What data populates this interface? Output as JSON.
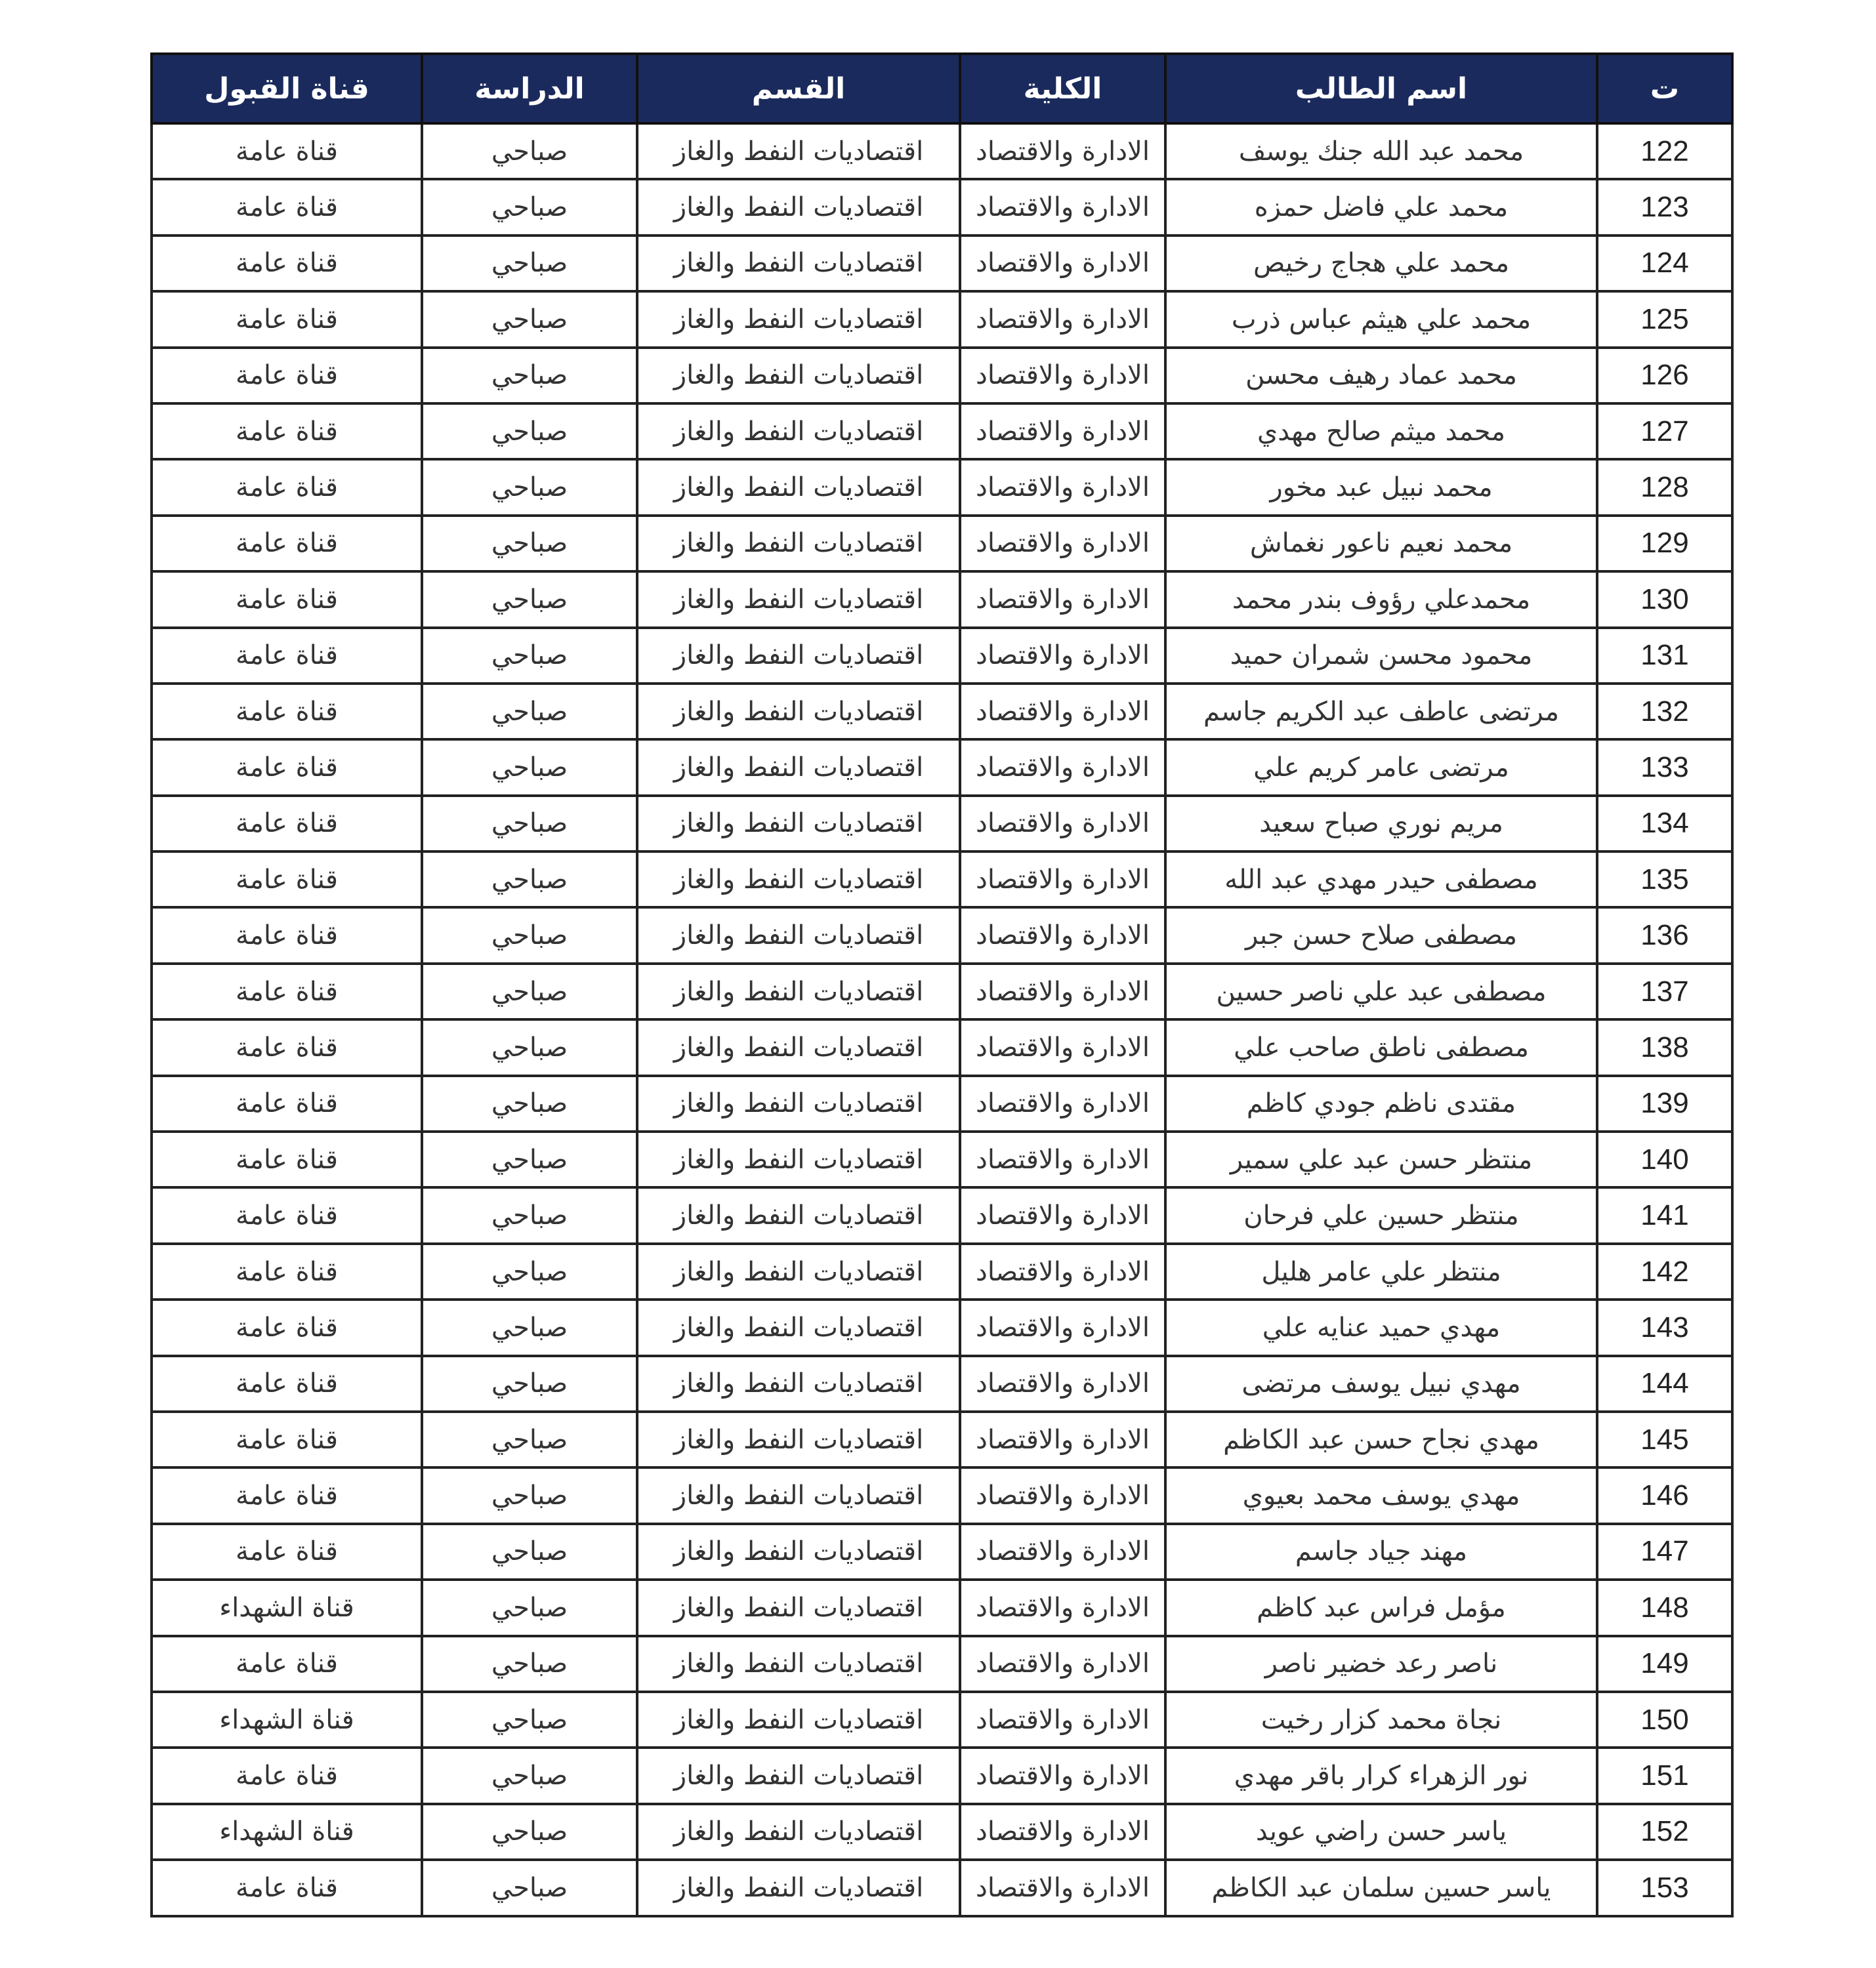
{
  "table": {
    "headers": [
      "ت",
      "اسم الطالب",
      "الكلية",
      "القسم",
      "الدراسة",
      "قناة القبول"
    ],
    "header_color": "#1b2a5c",
    "rows": [
      [
        "122",
        "محمد عبد الله جنك يوسف",
        "الادارة والاقتصاد",
        "اقتصاديات النفط والغاز",
        "صباحي",
        "قناة عامة"
      ],
      [
        "123",
        "محمد علي فاضل حمزه",
        "الادارة والاقتصاد",
        "اقتصاديات النفط والغاز",
        "صباحي",
        "قناة عامة"
      ],
      [
        "124",
        "محمد علي هجاج رخيص",
        "الادارة والاقتصاد",
        "اقتصاديات النفط والغاز",
        "صباحي",
        "قناة عامة"
      ],
      [
        "125",
        "محمد علي هيثم عباس ذرب",
        "الادارة والاقتصاد",
        "اقتصاديات النفط والغاز",
        "صباحي",
        "قناة عامة"
      ],
      [
        "126",
        "محمد عماد رهيف محسن",
        "الادارة والاقتصاد",
        "اقتصاديات النفط والغاز",
        "صباحي",
        "قناة عامة"
      ],
      [
        "127",
        "محمد ميثم صالح مهدي",
        "الادارة والاقتصاد",
        "اقتصاديات النفط والغاز",
        "صباحي",
        "قناة عامة"
      ],
      [
        "128",
        "محمد نبيل عبد مخور",
        "الادارة والاقتصاد",
        "اقتصاديات النفط والغاز",
        "صباحي",
        "قناة عامة"
      ],
      [
        "129",
        "محمد نعيم ناعور نغماش",
        "الادارة والاقتصاد",
        "اقتصاديات النفط والغاز",
        "صباحي",
        "قناة عامة"
      ],
      [
        "130",
        "محمدعلي رؤوف بندر محمد",
        "الادارة والاقتصاد",
        "اقتصاديات النفط والغاز",
        "صباحي",
        "قناة عامة"
      ],
      [
        "131",
        "محمود محسن شمران حميد",
        "الادارة والاقتصاد",
        "اقتصاديات النفط والغاز",
        "صباحي",
        "قناة عامة"
      ],
      [
        "132",
        "مرتضى عاطف عبد الكريم جاسم",
        "الادارة والاقتصاد",
        "اقتصاديات النفط والغاز",
        "صباحي",
        "قناة عامة"
      ],
      [
        "133",
        "مرتضى عامر كريم علي",
        "الادارة والاقتصاد",
        "اقتصاديات النفط والغاز",
        "صباحي",
        "قناة عامة"
      ],
      [
        "134",
        "مريم نوري صباح سعيد",
        "الادارة والاقتصاد",
        "اقتصاديات النفط والغاز",
        "صباحي",
        "قناة عامة"
      ],
      [
        "135",
        "مصطفى حيدر مهدي عبد الله",
        "الادارة والاقتصاد",
        "اقتصاديات النفط والغاز",
        "صباحي",
        "قناة عامة"
      ],
      [
        "136",
        "مصطفى صلاح حسن جبر",
        "الادارة والاقتصاد",
        "اقتصاديات النفط والغاز",
        "صباحي",
        "قناة عامة"
      ],
      [
        "137",
        "مصطفى عبد علي ناصر حسين",
        "الادارة والاقتصاد",
        "اقتصاديات النفط والغاز",
        "صباحي",
        "قناة عامة"
      ],
      [
        "138",
        "مصطفى ناطق صاحب علي",
        "الادارة والاقتصاد",
        "اقتصاديات النفط والغاز",
        "صباحي",
        "قناة عامة"
      ],
      [
        "139",
        "مقتدى ناظم جودي كاظم",
        "الادارة والاقتصاد",
        "اقتصاديات النفط والغاز",
        "صباحي",
        "قناة عامة"
      ],
      [
        "140",
        "منتظر حسن عبد علي سمير",
        "الادارة والاقتصاد",
        "اقتصاديات النفط والغاز",
        "صباحي",
        "قناة عامة"
      ],
      [
        "141",
        "منتظر حسين علي فرحان",
        "الادارة والاقتصاد",
        "اقتصاديات النفط والغاز",
        "صباحي",
        "قناة عامة"
      ],
      [
        "142",
        "منتظر علي عامر هليل",
        "الادارة والاقتصاد",
        "اقتصاديات النفط والغاز",
        "صباحي",
        "قناة عامة"
      ],
      [
        "143",
        "مهدي حميد عنايه علي",
        "الادارة والاقتصاد",
        "اقتصاديات النفط والغاز",
        "صباحي",
        "قناة عامة"
      ],
      [
        "144",
        "مهدي نبيل يوسف مرتضى",
        "الادارة والاقتصاد",
        "اقتصاديات النفط والغاز",
        "صباحي",
        "قناة عامة"
      ],
      [
        "145",
        "مهدي نجاح حسن عبد الكاظم",
        "الادارة والاقتصاد",
        "اقتصاديات النفط والغاز",
        "صباحي",
        "قناة عامة"
      ],
      [
        "146",
        "مهدي يوسف محمد بعيوي",
        "الادارة والاقتصاد",
        "اقتصاديات النفط والغاز",
        "صباحي",
        "قناة عامة"
      ],
      [
        "147",
        "مهند جياد جاسم",
        "الادارة والاقتصاد",
        "اقتصاديات النفط والغاز",
        "صباحي",
        "قناة عامة"
      ],
      [
        "148",
        "مؤمل فراس عبد كاظم",
        "الادارة والاقتصاد",
        "اقتصاديات النفط والغاز",
        "صباحي",
        "قناة الشهداء"
      ],
      [
        "149",
        "ناصر رعد خضير ناصر",
        "الادارة والاقتصاد",
        "اقتصاديات النفط والغاز",
        "صباحي",
        "قناة عامة"
      ],
      [
        "150",
        "نجاة محمد كزار رخيت",
        "الادارة والاقتصاد",
        "اقتصاديات النفط والغاز",
        "صباحي",
        "قناة الشهداء"
      ],
      [
        "151",
        "نور الزهراء كرار باقر مهدي",
        "الادارة والاقتصاد",
        "اقتصاديات النفط والغاز",
        "صباحي",
        "قناة عامة"
      ],
      [
        "152",
        "ياسر حسن راضي عويد",
        "الادارة والاقتصاد",
        "اقتصاديات النفط والغاز",
        "صباحي",
        "قناة الشهداء"
      ],
      [
        "153",
        "ياسر حسين سلمان عبد الكاظم",
        "الادارة والاقتصاد",
        "اقتصاديات النفط والغاز",
        "صباحي",
        "قناة عامة"
      ]
    ]
  }
}
